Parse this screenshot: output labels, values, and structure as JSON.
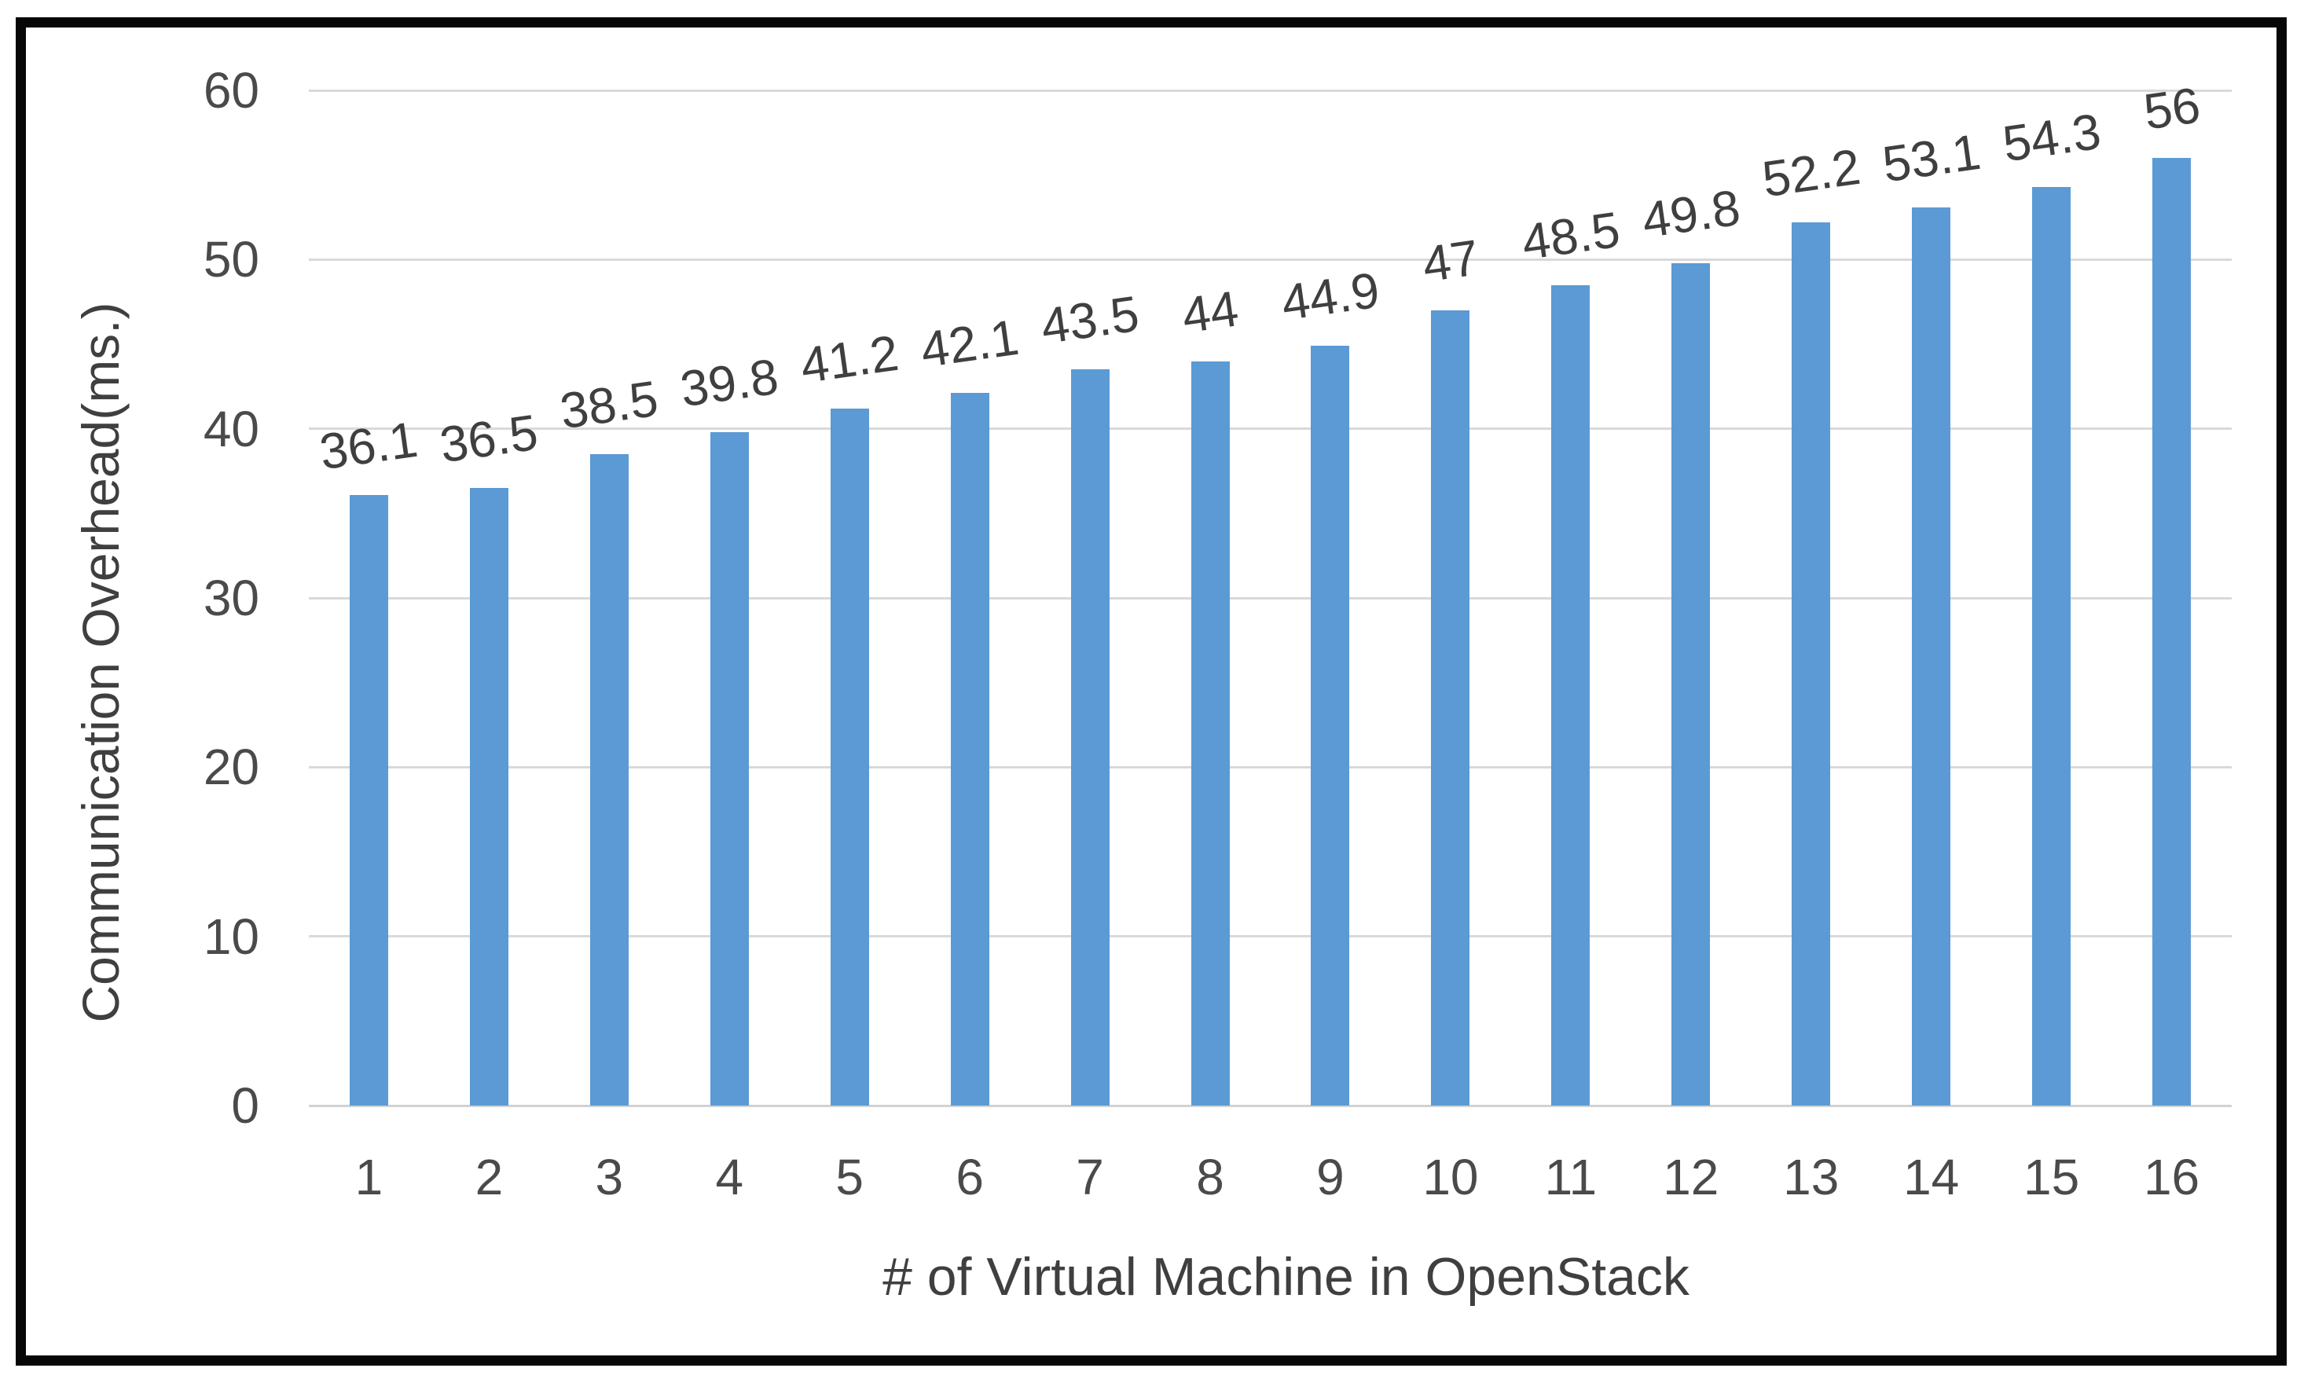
{
  "chart_data": {
    "type": "bar",
    "title": "",
    "xlabel": "# of Virtual Machine in OpenStack",
    "ylabel": "Communication Overhead(ms.)",
    "categories": [
      "1",
      "2",
      "3",
      "4",
      "5",
      "6",
      "7",
      "8",
      "9",
      "10",
      "11",
      "12",
      "13",
      "14",
      "15",
      "16"
    ],
    "values": [
      36.1,
      36.5,
      38.5,
      39.8,
      41.2,
      42.1,
      43.5,
      44,
      44.9,
      47,
      48.5,
      49.8,
      52.2,
      53.1,
      54.3,
      56
    ],
    "data_labels": [
      "36.1",
      "36.5",
      "38.5",
      "39.8",
      "41.2",
      "42.1",
      "43.5",
      "44",
      "44.9",
      "47",
      "48.5",
      "49.8",
      "52.2",
      "53.1",
      "54.3",
      "56"
    ],
    "ylim": [
      0,
      60
    ],
    "yticks": [
      0,
      10,
      20,
      30,
      40,
      50,
      60
    ],
    "grid": "horizontal-gridlines-on",
    "legend": "none",
    "colors": {
      "bar_fill": "#5B9AD5",
      "gridline": "#D9D9D9",
      "axis_baseline": "#D2D2D2",
      "tick_text": "#4A4A4A",
      "label_text": "#3F3F3F",
      "frame_border": "#070707",
      "background": "#FFFFFF"
    }
  }
}
